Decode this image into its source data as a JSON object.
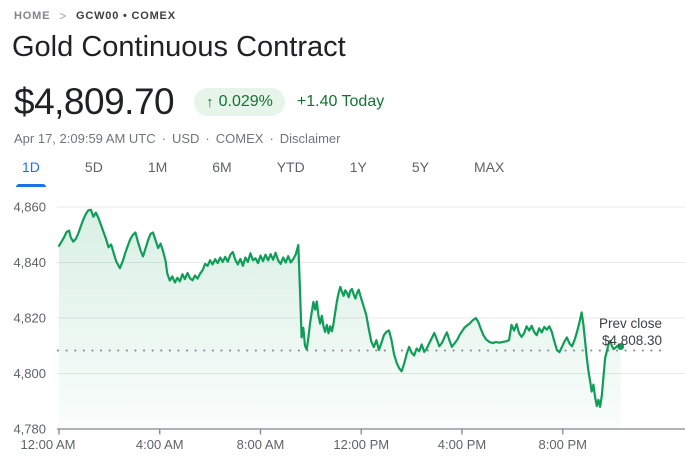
{
  "breadcrumb": {
    "home": "HOME",
    "chevron": ">",
    "current": "GCW00 • COMEX"
  },
  "header": {
    "title": "Gold Continuous Contract"
  },
  "quote": {
    "price": "$4,809.70",
    "change_arrow": "↑",
    "change_percent": "0.029%",
    "change_today": "+1.40 Today",
    "timestamp": "Apr 17, 2:09:59 AM UTC",
    "currency": "USD",
    "exchange": "COMEX",
    "disclaimer": "Disclaimer",
    "dot_separator": "·"
  },
  "tabs": [
    {
      "label": "1D",
      "active": true
    },
    {
      "label": "5D",
      "active": false
    },
    {
      "label": "1M",
      "active": false
    },
    {
      "label": "6M",
      "active": false
    },
    {
      "label": "YTD",
      "active": false
    },
    {
      "label": "1Y",
      "active": false
    },
    {
      "label": "5Y",
      "active": false
    },
    {
      "label": "MAX",
      "active": false
    }
  ],
  "colors": {
    "line": "#0f9d58",
    "area_top": "rgba(15,157,88,0.16)",
    "area_bottom": "rgba(15,157,88,0.02)",
    "grid": "#e8eaed",
    "axis": "#80868b",
    "tick_text": "#5f6368",
    "prev_close_text": "#3c4043",
    "positive": "#137333",
    "badge_bg": "#e6f4ea",
    "active_tab": "#1a73e8"
  },
  "chart_data": {
    "type": "area",
    "title": "Gold Continuous Contract — 1D intraday price (USD)",
    "xlabel": "",
    "ylabel": "",
    "ylim": [
      4780,
      4860
    ],
    "grid": true,
    "legend": false,
    "y_ticks": [
      {
        "value": 4860,
        "label": "4,860"
      },
      {
        "value": 4840,
        "label": "4,840"
      },
      {
        "value": 4820,
        "label": "4,820"
      },
      {
        "value": 4800,
        "label": "4,800"
      },
      {
        "value": 4780,
        "label": "4,780"
      }
    ],
    "x_ticks": [
      {
        "minute": 0,
        "label": "12:00 AM"
      },
      {
        "minute": 240,
        "label": "4:00 AM"
      },
      {
        "minute": 480,
        "label": "8:00 AM"
      },
      {
        "minute": 720,
        "label": "12:00 PM"
      },
      {
        "minute": 960,
        "label": "4:00 PM"
      },
      {
        "minute": 1200,
        "label": "8:00 PM"
      }
    ],
    "prev_close": {
      "value": 4808.3,
      "label_line1": "Prev close",
      "label_line2": "$4,808.30"
    },
    "last_price": 4809.7,
    "series": [
      {
        "name": "price",
        "points": [
          [
            0,
            4846
          ],
          [
            6,
            4847.5
          ],
          [
            12,
            4849
          ],
          [
            18,
            4851
          ],
          [
            24,
            4851.5
          ],
          [
            28,
            4849
          ],
          [
            34,
            4847.5
          ],
          [
            40,
            4848.5
          ],
          [
            46,
            4850.5
          ],
          [
            52,
            4853
          ],
          [
            58,
            4855.5
          ],
          [
            64,
            4857.5
          ],
          [
            70,
            4858.8
          ],
          [
            76,
            4859
          ],
          [
            82,
            4856.5
          ],
          [
            88,
            4858
          ],
          [
            94,
            4856
          ],
          [
            100,
            4853.5
          ],
          [
            106,
            4851
          ],
          [
            112,
            4848.5
          ],
          [
            118,
            4845.5
          ],
          [
            124,
            4846.5
          ],
          [
            130,
            4843.5
          ],
          [
            136,
            4840.5
          ],
          [
            145,
            4838
          ],
          [
            152,
            4840.5
          ],
          [
            158,
            4843.5
          ],
          [
            164,
            4846
          ],
          [
            170,
            4848.5
          ],
          [
            176,
            4850
          ],
          [
            182,
            4850.8
          ],
          [
            188,
            4847.5
          ],
          [
            194,
            4844.5
          ],
          [
            200,
            4842.2
          ],
          [
            206,
            4845
          ],
          [
            212,
            4848
          ],
          [
            218,
            4850.3
          ],
          [
            224,
            4850.8
          ],
          [
            230,
            4848
          ],
          [
            236,
            4845.2
          ],
          [
            242,
            4846.8
          ],
          [
            248,
            4844
          ],
          [
            254,
            4840.5
          ],
          [
            258,
            4836
          ],
          [
            264,
            4833.5
          ],
          [
            270,
            4835
          ],
          [
            276,
            4832.8
          ],
          [
            282,
            4834.5
          ],
          [
            288,
            4833.2
          ],
          [
            294,
            4835.8
          ],
          [
            300,
            4834
          ],
          [
            306,
            4836.2
          ],
          [
            312,
            4834.3
          ],
          [
            318,
            4833.6
          ],
          [
            324,
            4835.3
          ],
          [
            330,
            4834.2
          ],
          [
            336,
            4836
          ],
          [
            342,
            4837.2
          ],
          [
            348,
            4839.5
          ],
          [
            354,
            4838.8
          ],
          [
            360,
            4840.8
          ],
          [
            366,
            4839.3
          ],
          [
            372,
            4841.2
          ],
          [
            378,
            4839.8
          ],
          [
            384,
            4841.8
          ],
          [
            390,
            4840.2
          ],
          [
            396,
            4842
          ],
          [
            402,
            4840.3
          ],
          [
            408,
            4842.8
          ],
          [
            414,
            4843.8
          ],
          [
            420,
            4841
          ],
          [
            426,
            4839.3
          ],
          [
            432,
            4841.3
          ],
          [
            438,
            4838.8
          ],
          [
            444,
            4841.8
          ],
          [
            450,
            4840.2
          ],
          [
            456,
            4843.3
          ],
          [
            462,
            4840.8
          ],
          [
            468,
            4841.5
          ],
          [
            474,
            4839.8
          ],
          [
            480,
            4842.5
          ],
          [
            486,
            4840.5
          ],
          [
            492,
            4842.8
          ],
          [
            498,
            4840.8
          ],
          [
            504,
            4843
          ],
          [
            510,
            4841
          ],
          [
            516,
            4843.5
          ],
          [
            522,
            4840.8
          ],
          [
            528,
            4839.5
          ],
          [
            534,
            4841.8
          ],
          [
            540,
            4840
          ],
          [
            546,
            4842.3
          ],
          [
            552,
            4840
          ],
          [
            558,
            4841.2
          ],
          [
            564,
            4843
          ],
          [
            570,
            4846.3
          ],
          [
            574,
            4830
          ],
          [
            578,
            4813
          ],
          [
            582,
            4816.5
          ],
          [
            586,
            4810
          ],
          [
            590,
            4808.7
          ],
          [
            594,
            4813
          ],
          [
            598,
            4818
          ],
          [
            602,
            4822
          ],
          [
            606,
            4825.8
          ],
          [
            610,
            4823
          ],
          [
            614,
            4826
          ],
          [
            618,
            4821
          ],
          [
            622,
            4818
          ],
          [
            626,
            4820.8
          ],
          [
            630,
            4817
          ],
          [
            634,
            4815
          ],
          [
            638,
            4817.5
          ],
          [
            642,
            4814.5
          ],
          [
            646,
            4817
          ],
          [
            650,
            4815.2
          ],
          [
            654,
            4818
          ],
          [
            658,
            4822
          ],
          [
            662,
            4826
          ],
          [
            666,
            4829
          ],
          [
            670,
            4831.2
          ],
          [
            674,
            4829.5
          ],
          [
            678,
            4828
          ],
          [
            682,
            4830
          ],
          [
            686,
            4829
          ],
          [
            690,
            4827.5
          ],
          [
            694,
            4829.8
          ],
          [
            698,
            4830.5
          ],
          [
            702,
            4828.5
          ],
          [
            706,
            4827
          ],
          [
            710,
            4829
          ],
          [
            714,
            4830.2
          ],
          [
            718,
            4828
          ],
          [
            722,
            4826
          ],
          [
            726,
            4824
          ],
          [
            732,
            4821
          ],
          [
            738,
            4816
          ],
          [
            744,
            4811.5
          ],
          [
            750,
            4809.5
          ],
          [
            756,
            4812
          ],
          [
            762,
            4808.5
          ],
          [
            768,
            4811
          ],
          [
            774,
            4813.8
          ],
          [
            780,
            4815
          ],
          [
            786,
            4815.5
          ],
          [
            792,
            4812
          ],
          [
            798,
            4807
          ],
          [
            804,
            4804
          ],
          [
            810,
            4802
          ],
          [
            816,
            4800.8
          ],
          [
            822,
            4803.5
          ],
          [
            828,
            4807
          ],
          [
            834,
            4809.6
          ],
          [
            840,
            4807.5
          ],
          [
            846,
            4806.5
          ],
          [
            852,
            4809
          ],
          [
            858,
            4808
          ],
          [
            864,
            4810.5
          ],
          [
            870,
            4807.8
          ],
          [
            876,
            4809
          ],
          [
            882,
            4811
          ],
          [
            888,
            4812.8
          ],
          [
            894,
            4814.6
          ],
          [
            900,
            4812.3
          ],
          [
            906,
            4809.8
          ],
          [
            912,
            4811
          ],
          [
            918,
            4813
          ],
          [
            924,
            4814.8
          ],
          [
            930,
            4812
          ],
          [
            936,
            4809.6
          ],
          [
            942,
            4810.8
          ],
          [
            948,
            4812
          ],
          [
            954,
            4813.8
          ],
          [
            960,
            4815.2
          ],
          [
            966,
            4816.5
          ],
          [
            972,
            4817.3
          ],
          [
            978,
            4818
          ],
          [
            984,
            4819
          ],
          [
            993,
            4820
          ],
          [
            999,
            4818.5
          ],
          [
            1005,
            4816
          ],
          [
            1011,
            4813.8
          ],
          [
            1018,
            4812.2
          ],
          [
            1025,
            4811.4
          ],
          [
            1033,
            4811
          ],
          [
            1041,
            4811.3
          ],
          [
            1049,
            4811.1
          ],
          [
            1057,
            4811.4
          ],
          [
            1065,
            4811.6
          ],
          [
            1072,
            4812
          ],
          [
            1078,
            4817.5
          ],
          [
            1084,
            4815.5
          ],
          [
            1090,
            4817.8
          ],
          [
            1096,
            4814.5
          ],
          [
            1102,
            4813.2
          ],
          [
            1108,
            4814.5
          ],
          [
            1114,
            4817
          ],
          [
            1120,
            4815.5
          ],
          [
            1126,
            4817.2
          ],
          [
            1132,
            4815
          ],
          [
            1138,
            4813.8
          ],
          [
            1144,
            4816.3
          ],
          [
            1150,
            4814.8
          ],
          [
            1156,
            4816.8
          ],
          [
            1162,
            4815.8
          ],
          [
            1168,
            4817
          ],
          [
            1174,
            4815
          ],
          [
            1180,
            4811.5
          ],
          [
            1186,
            4808.5
          ],
          [
            1192,
            4807.7
          ],
          [
            1198,
            4809.5
          ],
          [
            1204,
            4811.5
          ],
          [
            1210,
            4813
          ],
          [
            1216,
            4810.8
          ],
          [
            1222,
            4809.8
          ],
          [
            1228,
            4812
          ],
          [
            1234,
            4815
          ],
          [
            1240,
            4818.5
          ],
          [
            1245,
            4822
          ],
          [
            1249,
            4818
          ],
          [
            1253,
            4812
          ],
          [
            1257,
            4806
          ],
          [
            1261,
            4801
          ],
          [
            1265,
            4797.5
          ],
          [
            1269,
            4793.5
          ],
          [
            1273,
            4796
          ],
          [
            1277,
            4791.5
          ],
          [
            1281,
            4788.3
          ],
          [
            1285,
            4790.5
          ],
          [
            1289,
            4788
          ],
          [
            1293,
            4792
          ],
          [
            1297,
            4799
          ],
          [
            1301,
            4805.5
          ],
          [
            1305,
            4808
          ],
          [
            1309,
            4810.5
          ],
          [
            1313,
            4811.8
          ],
          [
            1317,
            4810
          ],
          [
            1321,
            4808.8
          ],
          [
            1325,
            4809.2
          ],
          [
            1329,
            4809.8
          ],
          [
            1333,
            4810.2
          ],
          [
            1338,
            4809.7
          ]
        ]
      }
    ]
  }
}
